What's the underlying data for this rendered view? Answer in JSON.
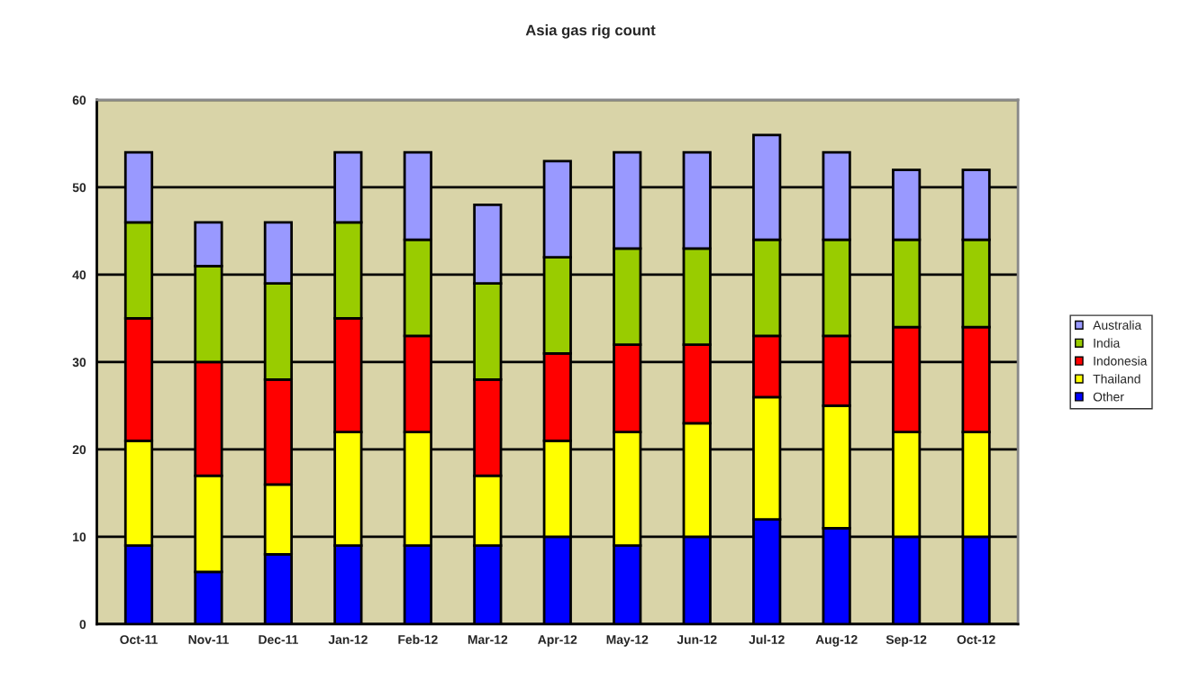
{
  "chart_data": {
    "type": "bar",
    "title": "Asia gas rig count",
    "stacked": true,
    "categories": [
      "Oct-11",
      "Nov-11",
      "Dec-11",
      "Jan-12",
      "Feb-12",
      "Mar-12",
      "Apr-12",
      "May-12",
      "Jun-12",
      "Jul-12",
      "Aug-12",
      "Sep-12",
      "Oct-12"
    ],
    "series": [
      {
        "name": "Other",
        "color": "#0000ff",
        "values": [
          9,
          6,
          8,
          9,
          9,
          9,
          10,
          9,
          10,
          12,
          11,
          10,
          10
        ]
      },
      {
        "name": "Thailand",
        "color": "#ffff00",
        "values": [
          12,
          11,
          8,
          13,
          13,
          8,
          11,
          13,
          13,
          14,
          14,
          12,
          12
        ]
      },
      {
        "name": "Indonesia",
        "color": "#ff0000",
        "values": [
          14,
          13,
          12,
          13,
          11,
          11,
          10,
          10,
          9,
          7,
          8,
          12,
          12
        ]
      },
      {
        "name": "India",
        "color": "#99cc00",
        "values": [
          11,
          11,
          11,
          11,
          11,
          11,
          11,
          11,
          11,
          11,
          11,
          10,
          10
        ]
      },
      {
        "name": "Australia",
        "color": "#9999ff",
        "values": [
          8,
          5,
          7,
          8,
          10,
          9,
          11,
          11,
          11,
          12,
          10,
          8,
          8
        ]
      }
    ],
    "ylim": [
      0,
      60
    ],
    "yticks": [
      0,
      10,
      20,
      30,
      40,
      50,
      60
    ],
    "grid": "y",
    "legend": "right"
  }
}
